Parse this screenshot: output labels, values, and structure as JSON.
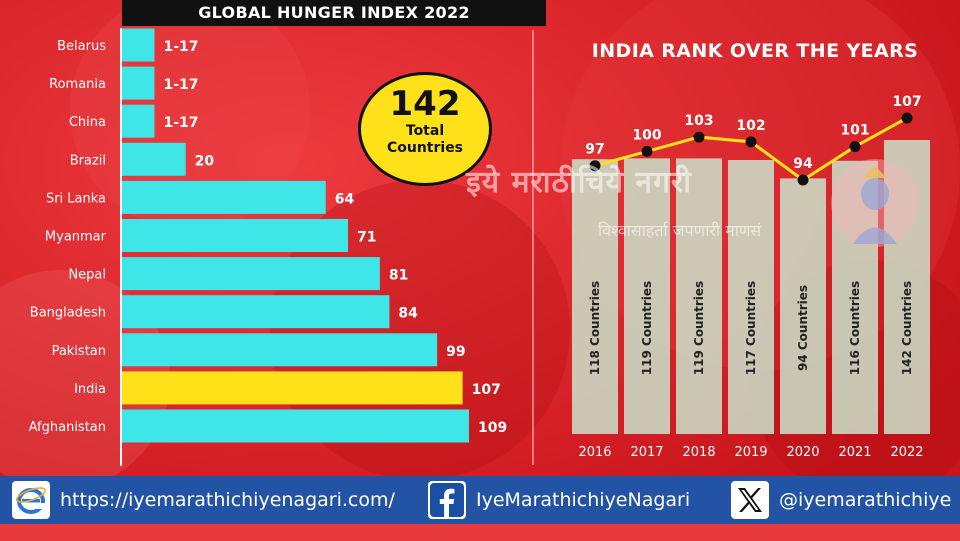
{
  "left_chart": {
    "title": "GLOBAL HUNGER INDEX 2022",
    "total_circle": {
      "number": "142",
      "label": "Total Countries"
    },
    "highlight_color": "#ffe11a",
    "bar_color": "#3fe6e8"
  },
  "right_chart": {
    "title": "INDIA RANK OVER THE YEARS",
    "line_color": "#ffe11a"
  },
  "watermark": {
    "main": "इये मराठीचिये नगरी",
    "sub": "विश्वासाहर्ता जपणारी माणसं"
  },
  "footer": {
    "website": "https://iyemarathichiyenagari.com/",
    "facebook": "IyeMarathichiyeNagari",
    "twitter": "@iyemarathichiye",
    "web_icon": "internet-explorer-e-icon",
    "facebook_icon": "facebook-f-icon",
    "twitter_icon": "x-logo-icon"
  },
  "chart_data": [
    {
      "type": "bar",
      "orientation": "horizontal",
      "title": "GLOBAL HUNGER INDEX 2022",
      "categories": [
        "Belarus",
        "Romania",
        "China",
        "Brazil",
        "Sri Lanka",
        "Myanmar",
        "Nepal",
        "Bangladesh",
        "Pakistan",
        "India",
        "Afghanistan"
      ],
      "values": [
        17,
        17,
        17,
        20,
        64,
        71,
        81,
        84,
        99,
        107,
        109
      ],
      "labels": [
        "1-17",
        "1-17",
        "1-17",
        "20",
        "64",
        "71",
        "81",
        "84",
        "99",
        "107",
        "109"
      ],
      "highlight": "India"
    },
    {
      "type": "line",
      "title": "INDIA RANK OVER THE YEARS",
      "x": [
        "2016",
        "2017",
        "2018",
        "2019",
        "2020",
        "2021",
        "2022"
      ],
      "values": [
        97,
        100,
        103,
        102,
        94,
        101,
        107
      ],
      "bar_labels": [
        "118 Countries",
        "119 Countries",
        "119 Countries",
        "117 Countries",
        "94 Countries",
        "116 Countries",
        "142 Countries"
      ],
      "bar_values": [
        118,
        119,
        119,
        117,
        94,
        116,
        142
      ]
    }
  ]
}
